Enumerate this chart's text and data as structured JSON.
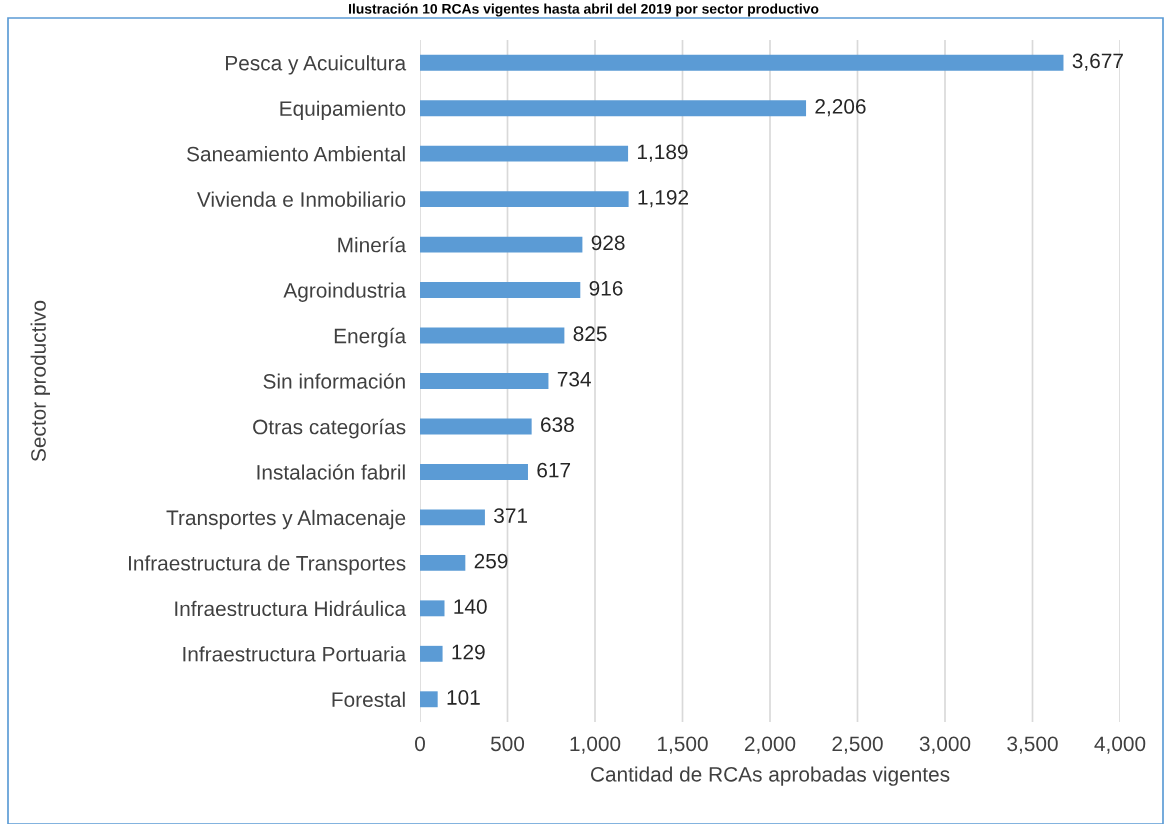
{
  "chart_data": {
    "type": "bar",
    "orientation": "horizontal",
    "title": "Ilustración 10 RCAs vigentes hasta abril del 2019 por sector productivo",
    "xlabel": "Cantidad de RCAs aprobadas vigentes",
    "ylabel": "Sector productivo",
    "categories": [
      "Pesca y Acuicultura",
      "Equipamiento",
      "Saneamiento Ambiental",
      "Vivienda e Inmobiliario",
      "Minería",
      "Agroindustria",
      "Energía",
      "Sin información",
      "Otras categorías",
      "Instalación fabril",
      "Transportes y Almacenaje",
      "Infraestructura de Transportes",
      "Infraestructura Hidráulica",
      "Infraestructura Portuaria",
      "Forestal"
    ],
    "values": [
      3677,
      2206,
      1189,
      1192,
      928,
      916,
      825,
      734,
      638,
      617,
      371,
      259,
      140,
      129,
      101
    ],
    "value_labels": [
      "3,677",
      "2,206",
      "1,189",
      "1,192",
      "928",
      "916",
      "825",
      "734",
      "638",
      "617",
      "371",
      "259",
      "140",
      "129",
      "101"
    ],
    "color": "#5b9bd5",
    "xlim": [
      0,
      4000
    ],
    "xticks": [
      0,
      {
        "value": 500,
        "label": "500"
      },
      {
        "value": 1000,
        "label": "1,000"
      },
      {
        "value": 1500,
        "label": "1,500"
      },
      {
        "value": 2000,
        "label": "2,000"
      },
      {
        "value": 2500,
        "label": "2,500"
      },
      {
        "value": 3000,
        "label": "3,000"
      },
      {
        "value": 3500,
        "label": "3,500"
      },
      {
        "value": 4000,
        "label": "4,000"
      }
    ],
    "grid": "x"
  }
}
